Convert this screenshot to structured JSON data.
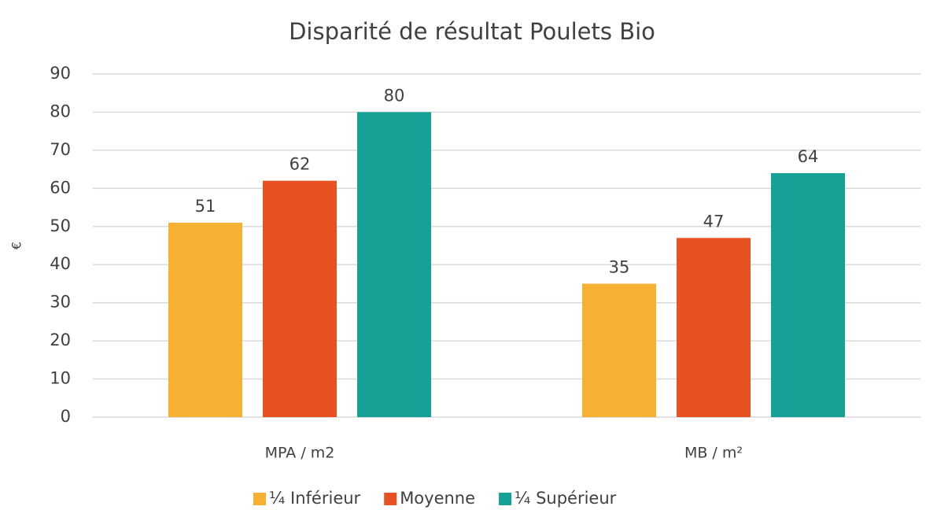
{
  "chart_data": {
    "type": "bar",
    "title": "Disparité de résultat Poulets Bio",
    "y_label": "€",
    "categories": [
      "MPA / m2",
      "MB / m²"
    ],
    "series": [
      {
        "name": "¼ Inférieur",
        "color": "#f7b132",
        "values": [
          51,
          35
        ]
      },
      {
        "name": "Moyenne",
        "color": "#e85222",
        "values": [
          62,
          47
        ]
      },
      {
        "name": "¼ Supérieur",
        "color": "#17a096",
        "values": [
          80,
          64
        ]
      }
    ],
    "ylim": [
      0,
      90
    ],
    "yticks": [
      0,
      10,
      20,
      30,
      40,
      50,
      60,
      70,
      80,
      90
    ],
    "grid": true,
    "legend": "bottom"
  }
}
